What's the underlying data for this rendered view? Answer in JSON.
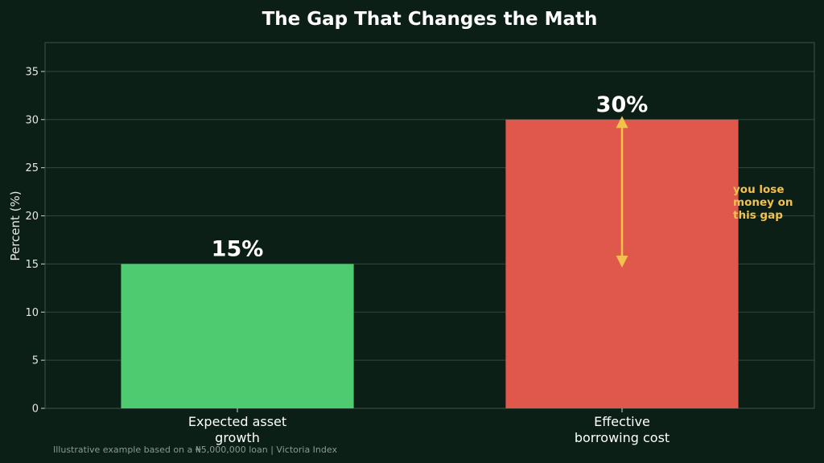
{
  "chart_data": {
    "type": "bar",
    "title": "The Gap That Changes the Math",
    "ylabel": "Percent (%)",
    "xlabel": "",
    "categories": [
      [
        "Expected asset",
        "growth"
      ],
      [
        "Effective",
        "borrowing cost"
      ]
    ],
    "values": [
      15,
      30
    ],
    "data_labels": [
      "15%",
      "30%"
    ],
    "bar_colors": [
      "#4ecb71",
      "#e0574b"
    ],
    "ylim": [
      0,
      38
    ],
    "yticks": [
      0,
      5,
      10,
      15,
      20,
      25,
      30,
      35
    ],
    "grid": true,
    "annotation": {
      "lines": [
        "you lose",
        "money on",
        "this gap"
      ],
      "arrow_from": 15,
      "arrow_to": 30,
      "color": "#f2c14e"
    },
    "footer": "Illustrative example based on a ₦5,000,000 loan  |  Victoria Index"
  }
}
